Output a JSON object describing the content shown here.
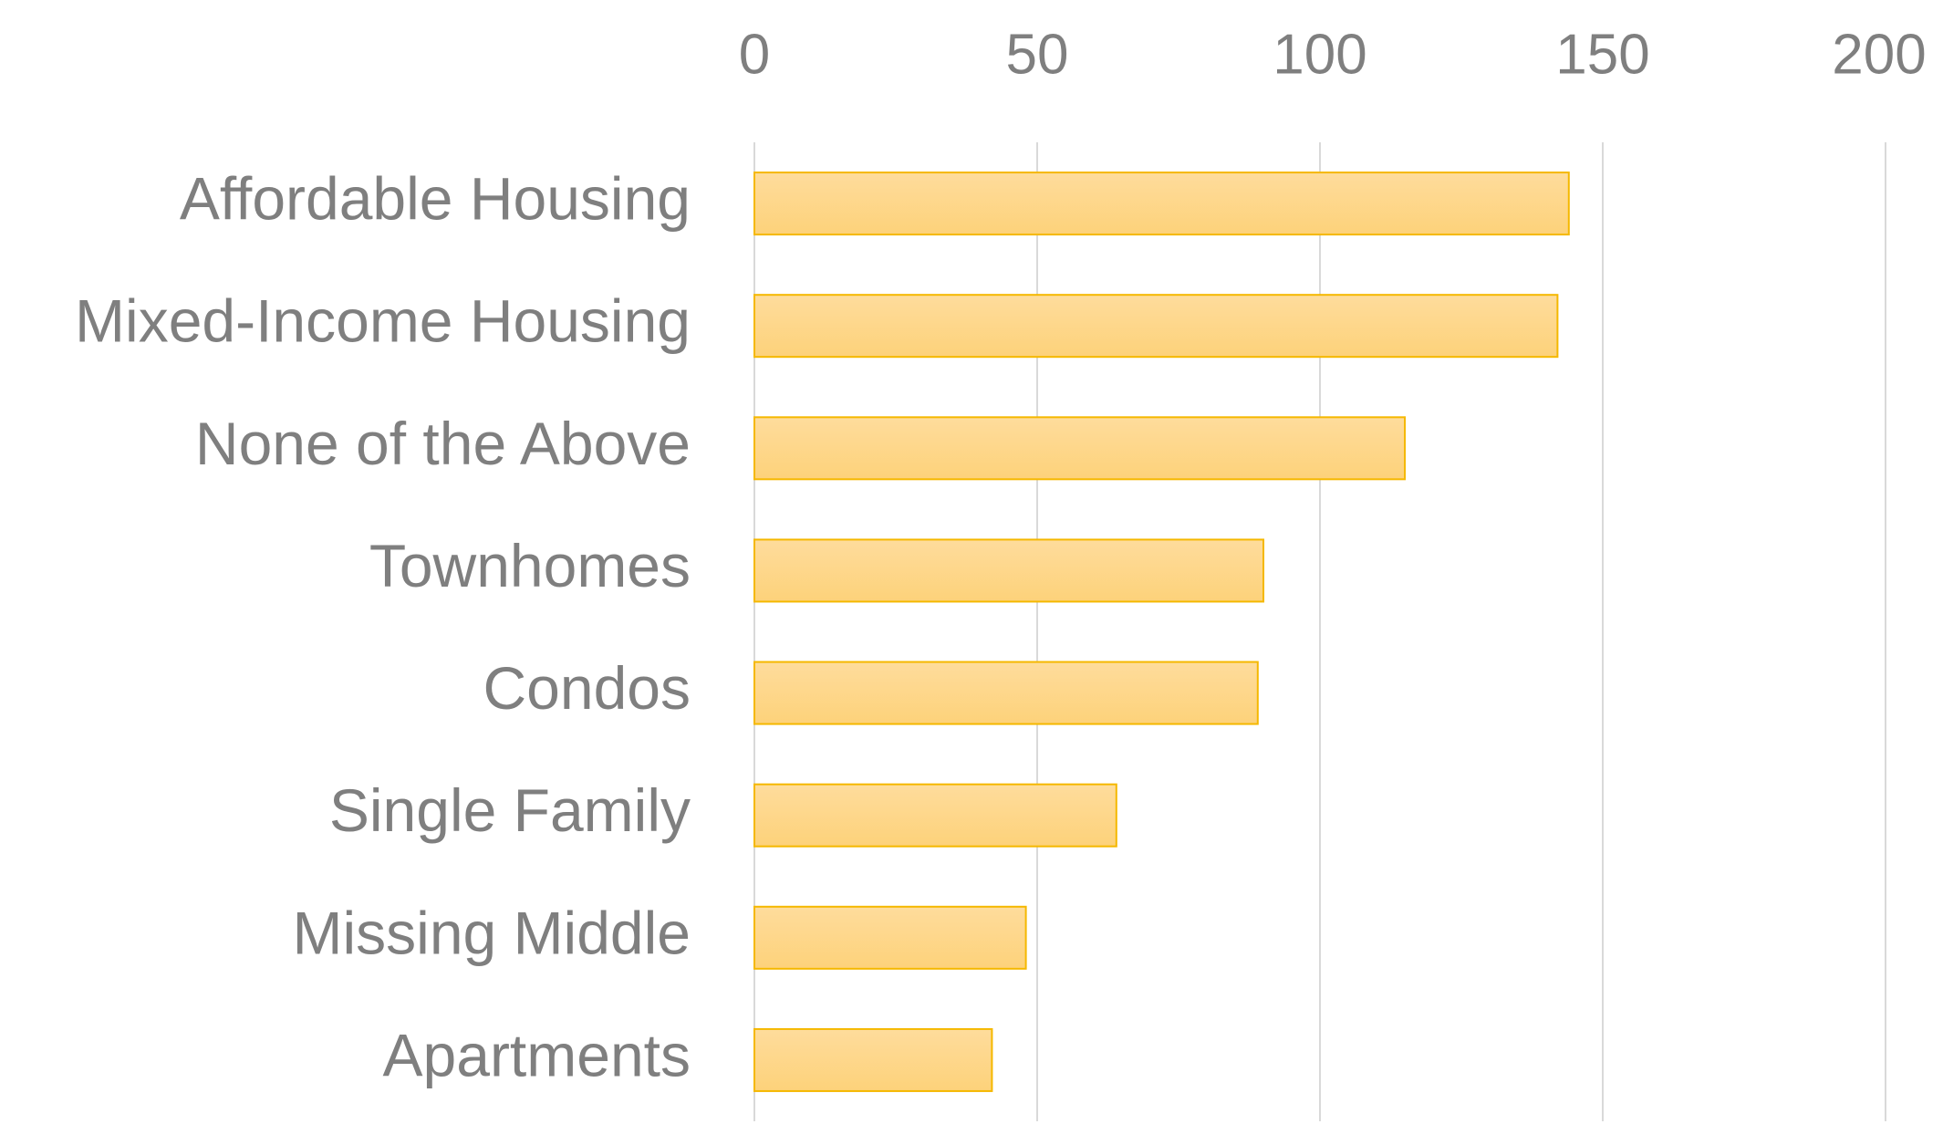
{
  "chart_data": {
    "type": "bar",
    "orientation": "horizontal",
    "categories": [
      "Affordable Housing",
      "Mixed-Income Housing",
      "None of the Above",
      "Townhomes",
      "Condos",
      "Single Family",
      "Missing Middle",
      "Apartments"
    ],
    "values": [
      144,
      142,
      115,
      90,
      89,
      64,
      48,
      42
    ],
    "color": "#fdd68a",
    "xlim": [
      0,
      200
    ],
    "xticks": [
      0,
      50,
      100,
      150,
      200
    ],
    "grid": true
  }
}
